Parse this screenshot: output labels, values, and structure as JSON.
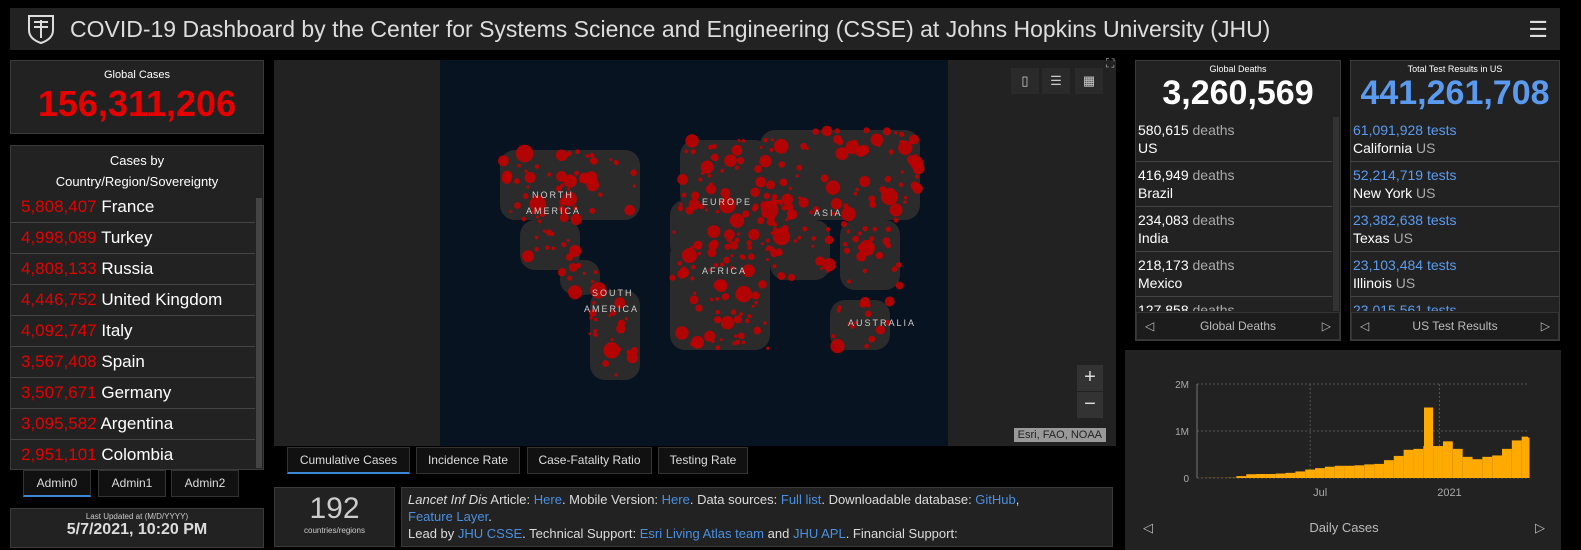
{
  "header": {
    "title": "COVID-19 Dashboard by the Center for Systems Science and Engineering (CSSE) at Johns Hopkins University (JHU)",
    "menu_icon": "hamburger-icon"
  },
  "global_cases": {
    "label": "Global Cases",
    "value": "156,311,206"
  },
  "country_list": {
    "title_line1": "Cases by",
    "title_line2": "Country/Region/Sovereignty",
    "items": [
      {
        "count": "5,808,407",
        "name": "France"
      },
      {
        "count": "4,998,089",
        "name": "Turkey"
      },
      {
        "count": "4,808,133",
        "name": "Russia"
      },
      {
        "count": "4,446,752",
        "name": "United Kingdom"
      },
      {
        "count": "4,092,747",
        "name": "Italy"
      },
      {
        "count": "3,567,408",
        "name": "Spain"
      },
      {
        "count": "3,507,671",
        "name": "Germany"
      },
      {
        "count": "3,095,582",
        "name": "Argentina"
      },
      {
        "count": "2,951,101",
        "name": "Colombia"
      }
    ]
  },
  "admin_tabs": [
    "Admin0",
    "Admin1",
    "Admin2"
  ],
  "last_updated": {
    "label": "Last Updated at (M/D/YYYY)",
    "value": "5/7/2021, 10:20 PM"
  },
  "map": {
    "continents": [
      "NORTH",
      "AMERICA",
      "EUROPE",
      "ASIA",
      "AFRICA",
      "SOUTH",
      "AMERICA",
      "AUSTRALIA"
    ],
    "attribution": "Esri, FAO, NOAA",
    "zoom_in": "+",
    "zoom_out": "−",
    "dot_color": "#c00000"
  },
  "map_tabs": [
    "Cumulative Cases",
    "Incidence Rate",
    "Case-Fatality Ratio",
    "Testing Rate"
  ],
  "count": {
    "value": "192",
    "label": "countries/regions"
  },
  "info": {
    "t1": "Lancet Inf Dis",
    "t2": " Article: ",
    "l1": "Here",
    "t3": ". Mobile Version: ",
    "l2": "Here",
    "t4": ". Data sources: ",
    "l3": "Full list",
    "t5": ". Downloadable database: ",
    "l4": "GitHub",
    "t6": ", ",
    "l5": "Feature Layer",
    "t7": ".",
    "t8": "Lead by ",
    "l6": "JHU CSSE",
    "t9": ". Technical Support: ",
    "l7": "Esri Living Atlas team",
    "t10": " and ",
    "l8": "JHU APL",
    "t11": ". Financial Support:"
  },
  "deaths": {
    "title": "Global Deaths",
    "value": "3,260,569",
    "unit": "deaths",
    "items": [
      {
        "count": "580,615",
        "place": "US"
      },
      {
        "count": "416,949",
        "place": "Brazil"
      },
      {
        "count": "234,083",
        "place": "India"
      },
      {
        "count": "218,173",
        "place": "Mexico"
      },
      {
        "count": "127,858",
        "place": ""
      }
    ],
    "pager": "Global Deaths"
  },
  "tests": {
    "title": "Total Test Results in US",
    "value": "441,261,708",
    "unit": "tests",
    "items": [
      {
        "count": "61,091,928",
        "state": "California",
        "country": "US"
      },
      {
        "count": "52,214,719",
        "state": "New York",
        "country": "US"
      },
      {
        "count": "23,382,638",
        "state": "Texas",
        "country": "US"
      },
      {
        "count": "23,103,484",
        "state": "Illinois",
        "country": "US"
      },
      {
        "count": "23,015,561",
        "state": "",
        "country": ""
      }
    ],
    "pager": "US Test Results"
  },
  "colors": {
    "cases": "#e60000",
    "tests": "#5b9bef",
    "bars": "#ffaa00",
    "accent": "#3a87d6"
  },
  "chart_data": {
    "type": "bar",
    "title": "Daily Cases",
    "ylim": [
      0,
      2000000
    ],
    "yticks": [
      "0",
      "1M",
      "2M"
    ],
    "xticks": [
      "Jul",
      "2021"
    ],
    "grid": true,
    "x": [
      "2020-01-22",
      "2020-02-05",
      "2020-02-19",
      "2020-03-04",
      "2020-03-18",
      "2020-04-01",
      "2020-04-15",
      "2020-04-29",
      "2020-05-13",
      "2020-05-27",
      "2020-06-10",
      "2020-06-24",
      "2020-07-08",
      "2020-07-22",
      "2020-08-05",
      "2020-08-19",
      "2020-09-02",
      "2020-09-16",
      "2020-09-30",
      "2020-10-14",
      "2020-10-28",
      "2020-11-11",
      "2020-11-25",
      "2020-12-09",
      "2020-12-10",
      "2020-12-23",
      "2021-01-06",
      "2021-01-20",
      "2021-02-03",
      "2021-02-17",
      "2021-03-03",
      "2021-03-17",
      "2021-03-31",
      "2021-04-14",
      "2021-04-28",
      "2021-05-07"
    ],
    "values": [
      1000,
      3000,
      2000,
      5000,
      40000,
      80000,
      85000,
      85000,
      95000,
      110000,
      140000,
      180000,
      210000,
      240000,
      260000,
      260000,
      270000,
      290000,
      300000,
      380000,
      470000,
      600000,
      620000,
      680000,
      1500000,
      680000,
      780000,
      620000,
      450000,
      400000,
      450000,
      480000,
      620000,
      800000,
      880000,
      860000
    ]
  }
}
